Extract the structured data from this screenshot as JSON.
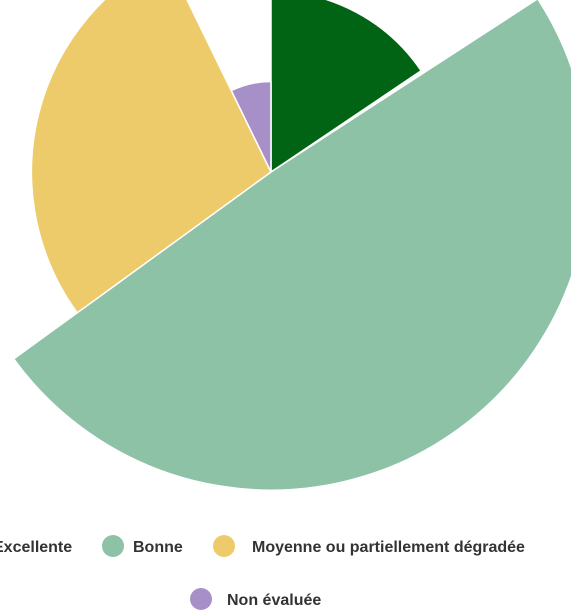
{
  "chart_data": {
    "type": "polar-area",
    "title": "",
    "categories": [
      "Excellente",
      "Bonne",
      "Moyenne ou partiellement dégradée",
      "Non évaluée"
    ],
    "values": [
      12,
      37,
      21,
      3
    ],
    "series": [
      {
        "name": "Excellente",
        "value": 12,
        "color": "#006414",
        "start_deg": 0,
        "end_deg": 56
      },
      {
        "name": "Bonne",
        "value": 37,
        "color": "#8dc2a7",
        "start_deg": 57,
        "end_deg": 234
      },
      {
        "name": "Moyenne ou partiellement dégradée",
        "value": 21,
        "color": "#eecb6a",
        "start_deg": 234,
        "end_deg": 334
      },
      {
        "name": "Non évaluée",
        "value": 3,
        "color": "#a790c8",
        "start_deg": 334,
        "end_deg": 360
      }
    ],
    "legend": {
      "position": "bottom",
      "items": [
        "Excellente",
        "Bonne",
        "Moyenne ou partiellement dégradée",
        "Non évaluée"
      ]
    },
    "grid": false
  }
}
